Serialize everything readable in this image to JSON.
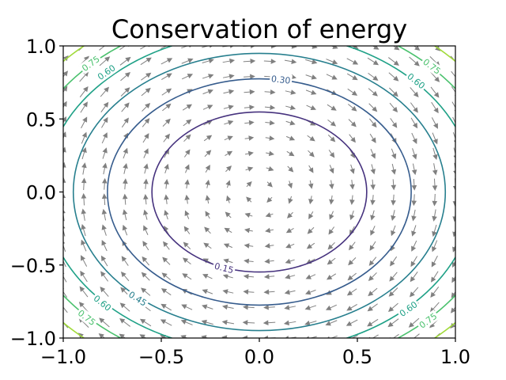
{
  "chart_data": {
    "type": "contour+quiver",
    "title": "Conservation of energy",
    "xlabel": "",
    "ylabel": "",
    "xlim": [
      -1.0,
      1.0
    ],
    "ylim": [
      -1.0,
      1.0
    ],
    "xticks": [
      -1.0,
      -0.5,
      0.0,
      0.5,
      1.0
    ],
    "yticks": [
      -1.0,
      -0.5,
      0.0,
      0.5,
      1.0
    ],
    "xtick_labels": [
      "−1.0",
      "−0.5",
      "0.0",
      "0.5",
      "1.0"
    ],
    "ytick_labels": [
      "−1.0",
      "−0.5",
      "0.0",
      "0.5",
      "1.0"
    ],
    "energy_function": "E = 0.5*y^2 + 0.5*x^2 (approx.)",
    "contour_levels": [
      0.15,
      0.3,
      0.45,
      0.6,
      0.75,
      0.9
    ],
    "contour_colors": [
      "#46327e",
      "#365c8d",
      "#277f8e",
      "#1fa187",
      "#4ac16d",
      "#a0da39"
    ],
    "contour_labels": [
      {
        "text": "0.15",
        "x": -0.18,
        "y": -0.52,
        "level": 0.15
      },
      {
        "text": "0.30",
        "x": 0.11,
        "y": 0.77,
        "level": 0.3
      },
      {
        "text": "0.45",
        "x": -0.62,
        "y": -0.73,
        "level": 0.45
      },
      {
        "text": "0.60",
        "x": -0.78,
        "y": 0.82,
        "level": 0.6
      },
      {
        "text": "0.60",
        "x": 0.8,
        "y": 0.76,
        "level": 0.6
      },
      {
        "text": "0.60",
        "x": -0.8,
        "y": -0.76,
        "level": 0.6
      },
      {
        "text": "0.60",
        "x": 0.76,
        "y": -0.8,
        "level": 0.6
      },
      {
        "text": "0.75",
        "x": -0.86,
        "y": 0.88,
        "level": 0.75
      },
      {
        "text": "0.75",
        "x": 0.88,
        "y": 0.86,
        "level": 0.75
      },
      {
        "text": "0.75",
        "x": -0.88,
        "y": -0.86,
        "level": 0.75
      },
      {
        "text": "0.75",
        "x": 0.86,
        "y": -0.88,
        "level": 0.75
      }
    ],
    "quiver": {
      "grid_x": [
        -1.0,
        1.0,
        20
      ],
      "grid_y": [
        -1.0,
        1.0,
        20
      ],
      "field": "dx/dt = y, dy/dt = -x",
      "color": "#808080"
    },
    "grid": false,
    "legend": "none"
  }
}
